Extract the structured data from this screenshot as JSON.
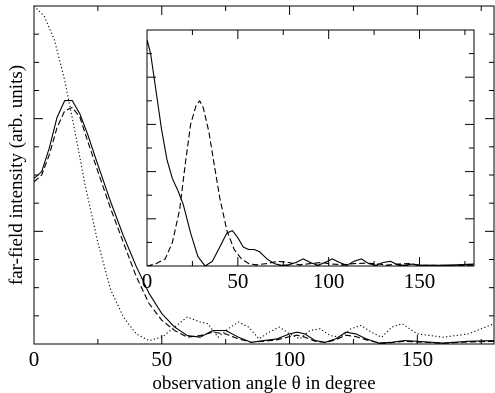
{
  "chart_data": [
    {
      "type": "line",
      "role": "main",
      "xlabel": "observation angle θ in degree",
      "ylabel": "far-field intensity (arb. units)",
      "xlim": [
        0,
        180
      ],
      "ylim": [
        0,
        1.0
      ],
      "xticks": [
        0,
        50,
        100,
        150
      ],
      "yticks_labeled": false,
      "grid": false,
      "series": [
        {
          "style": "solid",
          "x": [
            0,
            3,
            6,
            9,
            12,
            15,
            18,
            21,
            25,
            30,
            35,
            40,
            45,
            50,
            55,
            60,
            65,
            70,
            75,
            80,
            85,
            90,
            95,
            100,
            103,
            106,
            110,
            114,
            118,
            122,
            126,
            130,
            135,
            140,
            145,
            150,
            160,
            170,
            180
          ],
          "y": [
            0.49,
            0.51,
            0.58,
            0.67,
            0.72,
            0.72,
            0.68,
            0.62,
            0.53,
            0.42,
            0.32,
            0.23,
            0.15,
            0.09,
            0.05,
            0.025,
            0.02,
            0.04,
            0.04,
            0.02,
            0.005,
            0.01,
            0.015,
            0.03,
            0.035,
            0.03,
            0.01,
            0.005,
            0.015,
            0.035,
            0.03,
            0.015,
            0.003,
            0.005,
            0.01,
            0.008,
            0.003,
            0.008,
            0.01
          ]
        },
        {
          "style": "dashed",
          "x": [
            0,
            3,
            6,
            9,
            12,
            15,
            18,
            21,
            25,
            30,
            35,
            40,
            45,
            50,
            55,
            60,
            65,
            70,
            75,
            80,
            85,
            90,
            95,
            100,
            103,
            106,
            110,
            114,
            118,
            122,
            126,
            130,
            135,
            140,
            145,
            150,
            160,
            170,
            180
          ],
          "y": [
            0.48,
            0.5,
            0.56,
            0.64,
            0.69,
            0.7,
            0.67,
            0.6,
            0.51,
            0.4,
            0.3,
            0.2,
            0.12,
            0.07,
            0.04,
            0.02,
            0.025,
            0.035,
            0.03,
            0.015,
            0.005,
            0.008,
            0.012,
            0.022,
            0.026,
            0.02,
            0.008,
            0.004,
            0.012,
            0.026,
            0.022,
            0.012,
            0.003,
            0.004,
            0.008,
            0.006,
            0.003,
            0.006,
            0.008
          ]
        },
        {
          "style": "dotted",
          "x": [
            0,
            4,
            8,
            12,
            16,
            20,
            25,
            30,
            35,
            40,
            45,
            50,
            55,
            60,
            65,
            68,
            72,
            76,
            80,
            84,
            88,
            92,
            96,
            100,
            104,
            108,
            112,
            116,
            120,
            124,
            128,
            132,
            136,
            140,
            144,
            150,
            160,
            170,
            180
          ],
          "y": [
            1.0,
            0.97,
            0.9,
            0.78,
            0.63,
            0.47,
            0.3,
            0.16,
            0.08,
            0.03,
            0.01,
            0.02,
            0.05,
            0.08,
            0.065,
            0.06,
            0.02,
            0.045,
            0.065,
            0.05,
            0.015,
            0.035,
            0.05,
            0.03,
            0.015,
            0.04,
            0.045,
            0.025,
            0.02,
            0.045,
            0.055,
            0.035,
            0.02,
            0.05,
            0.06,
            0.03,
            0.02,
            0.03,
            0.06
          ]
        }
      ]
    },
    {
      "type": "line",
      "role": "inset",
      "xlim": [
        0,
        180
      ],
      "ylim": [
        0,
        1.0
      ],
      "xticks": [
        0,
        50,
        100,
        150
      ],
      "grid": false,
      "series": [
        {
          "style": "solid",
          "x": [
            0,
            2,
            5,
            8,
            11,
            14,
            17,
            20,
            24,
            28,
            32,
            36,
            40,
            44,
            47,
            50,
            53,
            56,
            59,
            62,
            66,
            70,
            74,
            78,
            82,
            86,
            90,
            94,
            98,
            102,
            106,
            110,
            114,
            118,
            122,
            126,
            130,
            134,
            138,
            142,
            146,
            150,
            160,
            170,
            180
          ],
          "y": [
            0.96,
            0.9,
            0.74,
            0.58,
            0.45,
            0.37,
            0.32,
            0.26,
            0.14,
            0.04,
            0.0,
            0.02,
            0.08,
            0.14,
            0.15,
            0.12,
            0.08,
            0.07,
            0.07,
            0.06,
            0.03,
            0.01,
            0.003,
            0.005,
            0.015,
            0.03,
            0.015,
            0.003,
            0.015,
            0.03,
            0.015,
            0.003,
            0.02,
            0.03,
            0.01,
            0.003,
            0.015,
            0.02,
            0.005,
            0.003,
            0.008,
            0.004,
            0.003,
            0.005,
            0.008
          ]
        },
        {
          "style": "dashed",
          "x": [
            0,
            5,
            10,
            14,
            18,
            21,
            24,
            27,
            29,
            31,
            34,
            37,
            40,
            44,
            48,
            52,
            56,
            60,
            66,
            72,
            78,
            84,
            90,
            96,
            102,
            108,
            114,
            120,
            126,
            132,
            138,
            144,
            150,
            160,
            170,
            180
          ],
          "y": [
            0.0,
            0.01,
            0.03,
            0.1,
            0.24,
            0.43,
            0.6,
            0.68,
            0.7,
            0.67,
            0.57,
            0.43,
            0.29,
            0.15,
            0.07,
            0.03,
            0.01,
            0.005,
            0.01,
            0.02,
            0.015,
            0.005,
            0.01,
            0.015,
            0.008,
            0.005,
            0.01,
            0.012,
            0.01,
            0.004,
            0.008,
            0.01,
            0.004,
            0.003,
            0.004,
            0.005
          ]
        }
      ]
    }
  ]
}
